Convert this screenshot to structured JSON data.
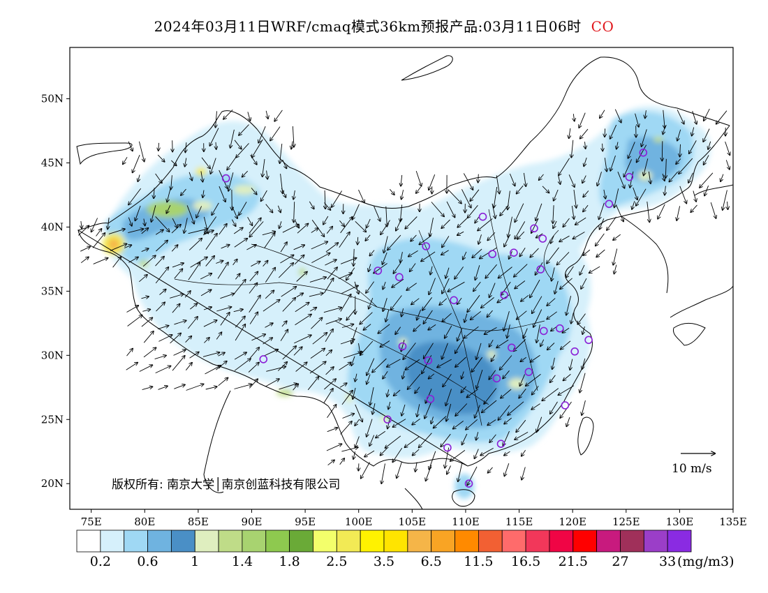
{
  "title": {
    "main": "2024年03月11日WRF/cmaq模式36km预报产品:03月11日06时",
    "species": "CO",
    "species_color": "#e0161b"
  },
  "map": {
    "type": "filled-contour-with-wind-vectors",
    "lon_range": [
      73,
      135
    ],
    "lat_range": [
      18,
      54
    ],
    "x_ticks": [
      "75E",
      "80E",
      "85E",
      "90E",
      "95E",
      "100E",
      "105E",
      "110E",
      "115E",
      "120E",
      "125E",
      "130E",
      "135E"
    ],
    "y_ticks": [
      "20N",
      "25N",
      "30N",
      "35N",
      "40N",
      "45N",
      "50N"
    ],
    "land_outline_color": "#000000",
    "station_marker_color": "#8a1fd6",
    "stations": [
      [
        87.6,
        43.8
      ],
      [
        91.1,
        29.7
      ],
      [
        101.8,
        36.6
      ],
      [
        103.8,
        36.1
      ],
      [
        106.3,
        38.5
      ],
      [
        111.6,
        40.8
      ],
      [
        112.5,
        37.9
      ],
      [
        114.5,
        38.0
      ],
      [
        116.4,
        39.9
      ],
      [
        117.2,
        39.1
      ],
      [
        117.0,
        36.7
      ],
      [
        113.6,
        34.7
      ],
      [
        108.9,
        34.3
      ],
      [
        104.1,
        30.7
      ],
      [
        106.5,
        29.6
      ],
      [
        114.3,
        30.6
      ],
      [
        112.9,
        28.2
      ],
      [
        115.9,
        28.7
      ],
      [
        117.3,
        31.9
      ],
      [
        118.8,
        32.1
      ],
      [
        120.2,
        30.3
      ],
      [
        121.5,
        31.2
      ],
      [
        119.3,
        26.1
      ],
      [
        113.3,
        23.1
      ],
      [
        108.3,
        22.8
      ],
      [
        110.3,
        20.0
      ],
      [
        106.7,
        26.6
      ],
      [
        102.7,
        25.0
      ],
      [
        123.4,
        41.8
      ],
      [
        125.3,
        43.9
      ],
      [
        126.6,
        45.8
      ]
    ]
  },
  "wind": {
    "scale_label": "10 m/s",
    "scale_vector_ms": 10
  },
  "colorbar": {
    "unit": "(mg/m3)",
    "colors": [
      "#ffffff",
      "#d6f0fb",
      "#9fd8f4",
      "#6fb3e0",
      "#4a8fc6",
      "#dfeebf",
      "#bfdc88",
      "#a8d370",
      "#8ec94f",
      "#6aaa37",
      "#f3ff6b",
      "#f2ea55",
      "#fff200",
      "#ffe400",
      "#f5b548",
      "#f9a424",
      "#ff8a00",
      "#f26033",
      "#ff6b6b",
      "#f2375a",
      "#f00545",
      "#ff0000",
      "#c81a7e",
      "#a0305a",
      "#9b3ec8",
      "#8a2be2"
    ],
    "labels": [
      "0.2",
      "0.6",
      "1",
      "1.4",
      "1.8",
      "2.5",
      "3.5",
      "6.5",
      "11.5",
      "16.5",
      "21.5",
      "27",
      "33"
    ]
  },
  "copyright": "版权所有: 南京大学│南京创蓝科技有限公司"
}
